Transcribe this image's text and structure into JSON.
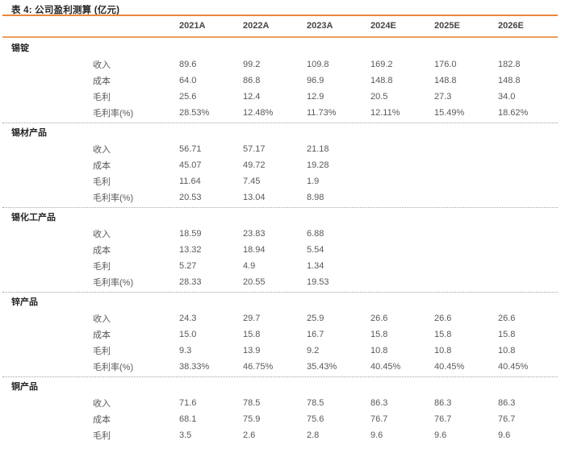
{
  "title": "表 4: 公司盈利测算 (亿元)",
  "table": {
    "columns": [
      "2021A",
      "2022A",
      "2023A",
      "2024E",
      "2025E",
      "2026E"
    ],
    "groups": [
      {
        "name": "锡锭",
        "rows": [
          {
            "label": "收入",
            "values": [
              "89.6",
              "99.2",
              "109.8",
              "169.2",
              "176.0",
              "182.8"
            ]
          },
          {
            "label": "成本",
            "values": [
              "64.0",
              "86.8",
              "96.9",
              "148.8",
              "148.8",
              "148.8"
            ]
          },
          {
            "label": "毛利",
            "values": [
              "25.6",
              "12.4",
              "12.9",
              "20.5",
              "27.3",
              "34.0"
            ]
          },
          {
            "label": "毛利率(%)",
            "values": [
              "28.53%",
              "12.48%",
              "11.73%",
              "12.11%",
              "15.49%",
              "18.62%"
            ]
          }
        ]
      },
      {
        "name": "锡材产品",
        "rows": [
          {
            "label": "收入",
            "values": [
              "56.71",
              "57.17",
              "21.18",
              "",
              "",
              ""
            ]
          },
          {
            "label": "成本",
            "values": [
              "45.07",
              "49.72",
              "19.28",
              "",
              "",
              ""
            ]
          },
          {
            "label": "毛利",
            "values": [
              "11.64",
              "7.45",
              "1.9",
              "",
              "",
              ""
            ]
          },
          {
            "label": "毛利率(%)",
            "values": [
              "20.53",
              "13.04",
              "8.98",
              "",
              "",
              ""
            ]
          }
        ]
      },
      {
        "name": "锡化工产品",
        "rows": [
          {
            "label": "收入",
            "values": [
              "18.59",
              "23.83",
              "6.88",
              "",
              "",
              ""
            ]
          },
          {
            "label": "成本",
            "values": [
              "13.32",
              "18.94",
              "5.54",
              "",
              "",
              ""
            ]
          },
          {
            "label": "毛利",
            "values": [
              "5.27",
              "4.9",
              "1.34",
              "",
              "",
              ""
            ]
          },
          {
            "label": "毛利率(%)",
            "values": [
              "28.33",
              "20.55",
              "19.53",
              "",
              "",
              ""
            ]
          }
        ]
      },
      {
        "name": "锌产品",
        "rows": [
          {
            "label": "收入",
            "values": [
              "24.3",
              "29.7",
              "25.9",
              "26.6",
              "26.6",
              "26.6"
            ]
          },
          {
            "label": "成本",
            "values": [
              "15.0",
              "15.8",
              "16.7",
              "15.8",
              "15.8",
              "15.8"
            ]
          },
          {
            "label": "毛利",
            "values": [
              "9.3",
              "13.9",
              "9.2",
              "10.8",
              "10.8",
              "10.8"
            ]
          },
          {
            "label": "毛利率(%)",
            "values": [
              "38.33%",
              "46.75%",
              "35.43%",
              "40.45%",
              "40.45%",
              "40.45%"
            ]
          }
        ]
      },
      {
        "name": "铜产品",
        "rows": [
          {
            "label": "收入",
            "values": [
              "71.6",
              "78.5",
              "78.5",
              "86.3",
              "86.3",
              "86.3"
            ]
          },
          {
            "label": "成本",
            "values": [
              "68.1",
              "75.9",
              "75.6",
              "76.7",
              "76.7",
              "76.7"
            ]
          },
          {
            "label": "毛利",
            "values": [
              "3.5",
              "2.6",
              "2.8",
              "9.6",
              "9.6",
              "9.6"
            ]
          }
        ]
      }
    ]
  },
  "colors": {
    "accent_orange": "#E8873C",
    "divider_gray": "#A3A3A3"
  }
}
